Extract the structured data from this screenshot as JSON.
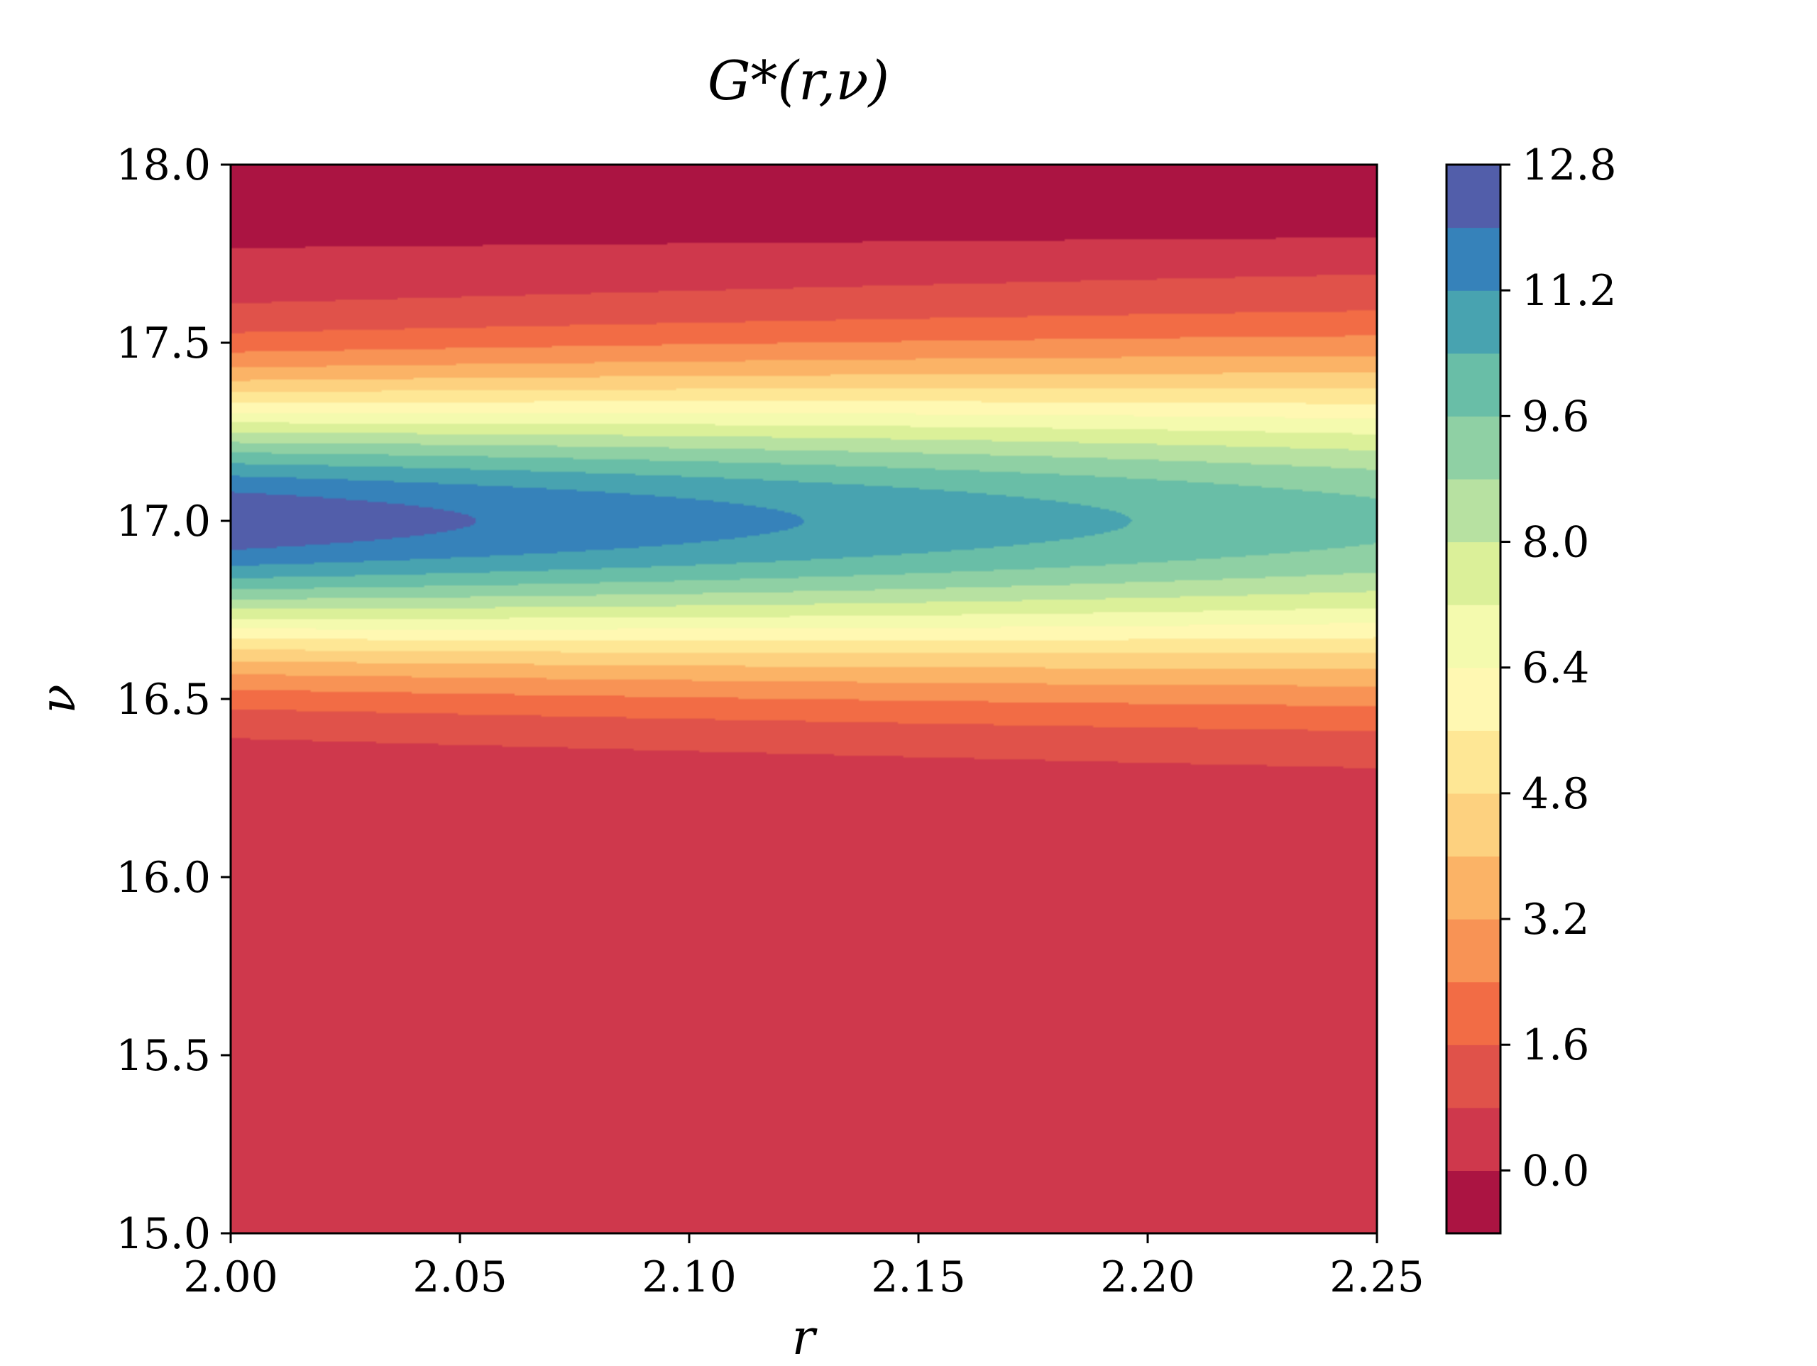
{
  "chart_data": {
    "type": "contourf",
    "title": "G*(r,ν)",
    "xlabel": "r",
    "ylabel": "ν",
    "xlim": [
      2.0,
      2.25
    ],
    "ylim": [
      15.0,
      18.0
    ],
    "x_ticks": [
      "2.00",
      "2.05",
      "2.10",
      "2.15",
      "2.20",
      "2.25"
    ],
    "y_ticks": [
      "15.0",
      "15.5",
      "16.0",
      "16.5",
      "17.0",
      "17.5",
      "18.0"
    ],
    "colorbar": {
      "ticks": [
        "0.0",
        "1.6",
        "3.2",
        "4.8",
        "6.4",
        "8.0",
        "9.6",
        "11.2",
        "12.8"
      ],
      "range": [
        -0.8,
        12.8
      ],
      "levels": [
        -0.8,
        0.0,
        0.8,
        1.6,
        2.4,
        3.2,
        4.0,
        4.8,
        5.6,
        6.4,
        7.2,
        8.0,
        8.8,
        9.6,
        10.4,
        11.2,
        12.0,
        12.8
      ],
      "colors": [
        "#ab1442",
        "#cf384c",
        "#e0524a",
        "#f26c45",
        "#f89355",
        "#fbb366",
        "#fdd17f",
        "#fee795",
        "#fff8b2",
        "#f4faae",
        "#dbf099",
        "#b7e1a1",
        "#8fd0a4",
        "#69bea7",
        "#48a3b0",
        "#3682ba",
        "#525eaa"
      ],
      "colormap": "Spectral"
    },
    "peak": {
      "r": 2.0,
      "nu": 17.0,
      "value": 12.6
    },
    "description_of_field": "Gaussian ridge in ν centered at 17.0; amplitude decreasing with r from about 12.6 at r=2.00 to about 9.9 at r=2.25; background near 0",
    "grid": false
  }
}
